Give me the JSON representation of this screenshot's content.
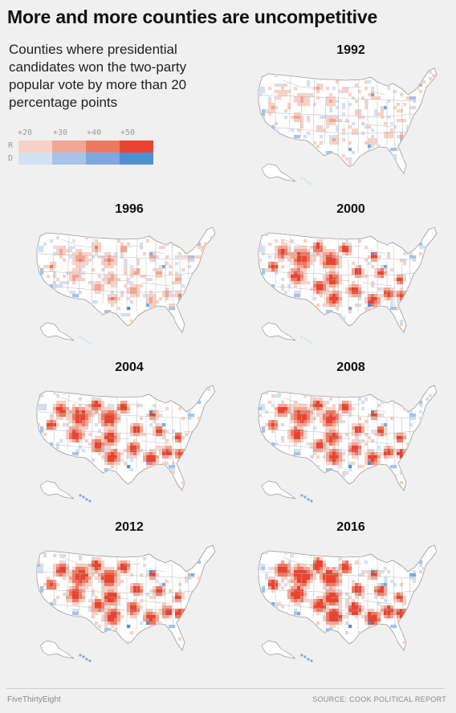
{
  "title": "More and more counties are uncompetitive",
  "subtitle": "Counties where presidential candidates won the two-party popular vote by more than 20 percentage points",
  "legend": {
    "thresholds": [
      "+20",
      "+30",
      "+40",
      "+50"
    ],
    "rows": [
      {
        "label": "R",
        "colors": [
          "#f8d1c6",
          "#f2a695",
          "#ec7a63",
          "#e84430"
        ]
      },
      {
        "label": "D",
        "colors": [
          "#d3e1f2",
          "#a7c3e8",
          "#7fa9de",
          "#4f8fd2"
        ]
      }
    ]
  },
  "colors": {
    "background": "#f0f0f0",
    "land": "#ffffff",
    "state_lines": "#b9b9b9",
    "r_strong": "#e84430",
    "d_strong": "#4f8fd2"
  },
  "maps": [
    {
      "year": "1992",
      "r_intensity": 0.15,
      "d_intensity": 0.3
    },
    {
      "year": "1996",
      "r_intensity": 0.25,
      "d_intensity": 0.3
    },
    {
      "year": "2000",
      "r_intensity": 0.7,
      "d_intensity": 0.3
    },
    {
      "year": "2004",
      "r_intensity": 0.75,
      "d_intensity": 0.3
    },
    {
      "year": "2008",
      "r_intensity": 0.7,
      "d_intensity": 0.4
    },
    {
      "year": "2012",
      "r_intensity": 0.8,
      "d_intensity": 0.4
    },
    {
      "year": "2016",
      "r_intensity": 0.95,
      "d_intensity": 0.45
    }
  ],
  "footer": {
    "brand": "FiveThirtyEight",
    "source": "SOURCE: COOK POLITICAL REPORT"
  }
}
